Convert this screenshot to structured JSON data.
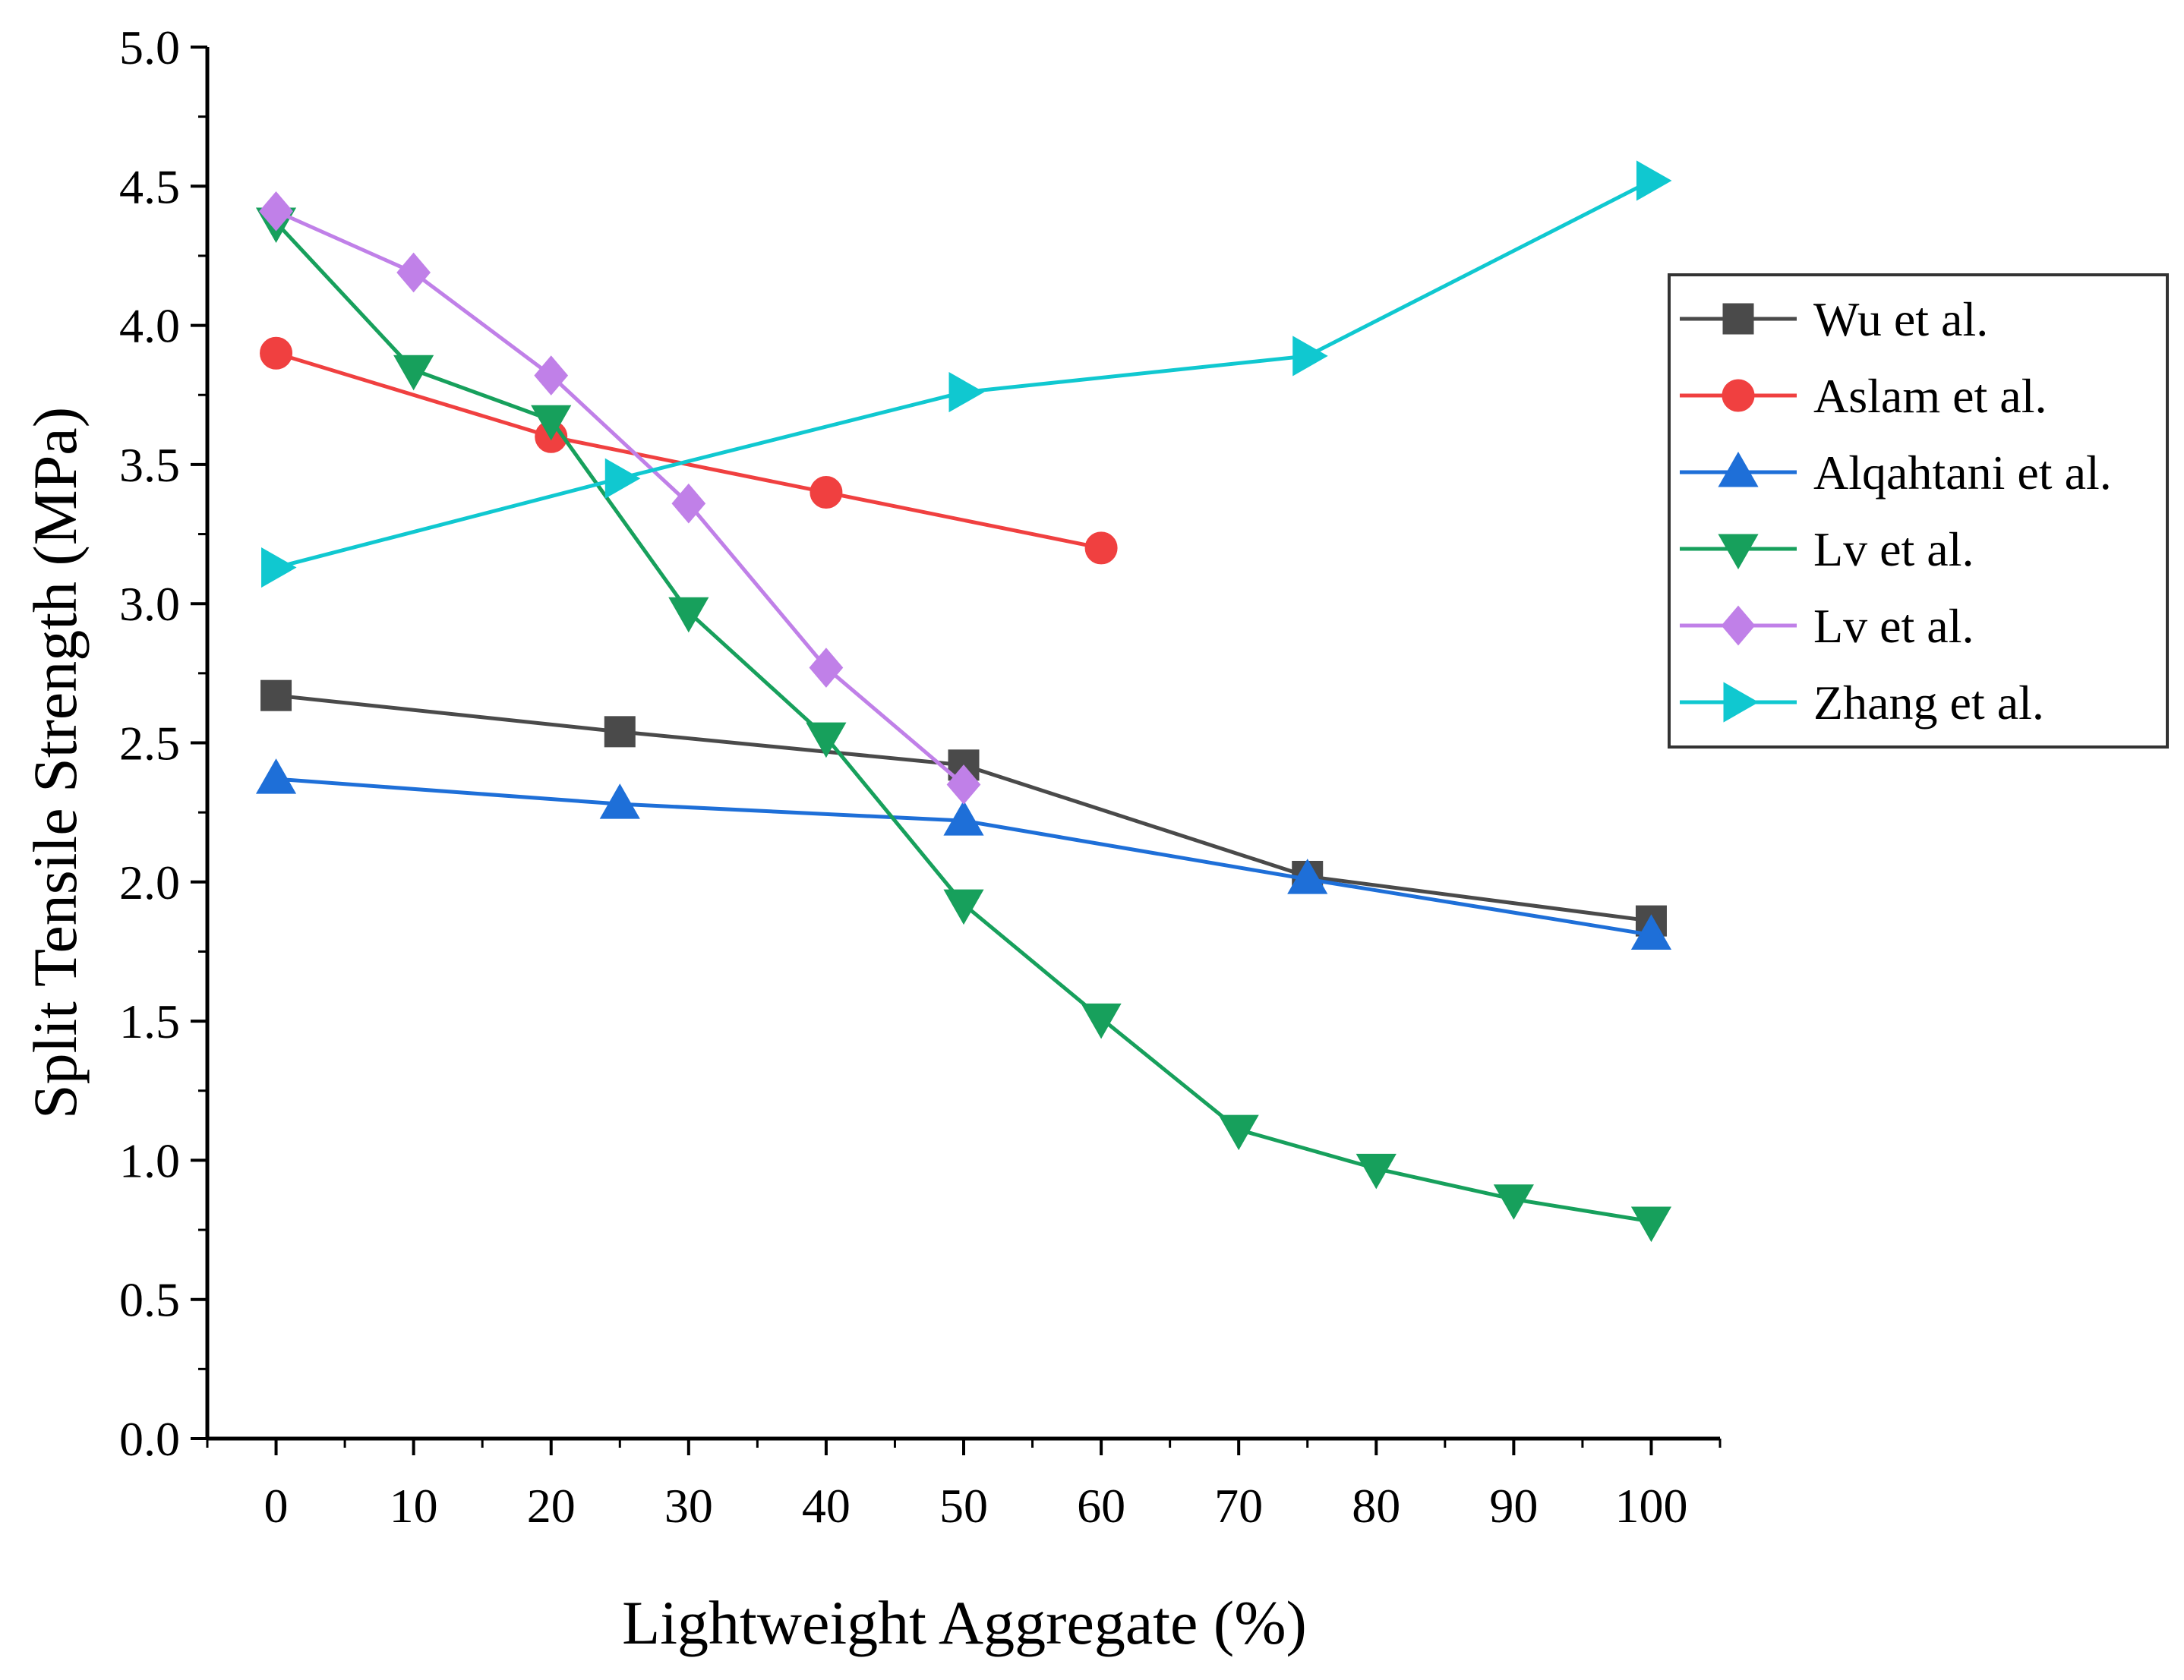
{
  "chart_data": {
    "type": "line",
    "title": "",
    "xlabel": "Lightweight Aggregate (%)",
    "ylabel": "Split Tensile Strength (MPa)",
    "xlim": [
      -5,
      105
    ],
    "ylim": [
      0,
      5
    ],
    "xticks": [
      "0",
      "10",
      "20",
      "30",
      "40",
      "50",
      "60",
      "70",
      "80",
      "90",
      "100"
    ],
    "yticks": [
      "0.0",
      "0.5",
      "1.0",
      "1.5",
      "2.0",
      "2.5",
      "3.0",
      "3.5",
      "4.0",
      "4.5",
      "5.0"
    ],
    "grid": false,
    "legend_position": "right",
    "series": [
      {
        "name": "Wu et al.",
        "color": "#4a4a4a",
        "marker": "square",
        "x": [
          0,
          25,
          50,
          75,
          100
        ],
        "y": [
          2.67,
          2.54,
          2.42,
          2.02,
          1.86
        ]
      },
      {
        "name": "Aslam et al.",
        "color": "#f04040",
        "marker": "circle",
        "x": [
          0,
          20,
          40,
          60
        ],
        "y": [
          3.9,
          3.6,
          3.4,
          3.2
        ]
      },
      {
        "name": "Alqahtani et al.",
        "color": "#1e6fd8",
        "marker": "triangle-up",
        "x": [
          0,
          25,
          50,
          75,
          100
        ],
        "y": [
          2.37,
          2.28,
          2.22,
          2.01,
          1.81
        ]
      },
      {
        "name": "Lv et al.",
        "color": "#17a05c",
        "marker": "triangle-down",
        "x": [
          0,
          10,
          20,
          30,
          40,
          50,
          60,
          70,
          80,
          90,
          100
        ],
        "y": [
          4.37,
          3.84,
          3.66,
          2.97,
          2.52,
          1.92,
          1.51,
          1.11,
          0.97,
          0.86,
          0.78
        ]
      },
      {
        "name": "Lv et al.",
        "color": "#c080e8",
        "marker": "diamond",
        "x": [
          0,
          10,
          20,
          30,
          40,
          50
        ],
        "y": [
          4.41,
          4.19,
          3.82,
          3.36,
          2.77,
          2.35
        ]
      },
      {
        "name": "Zhang et al.",
        "color": "#10c8d0",
        "marker": "triangle-right",
        "x": [
          0,
          25,
          50,
          75,
          100
        ],
        "y": [
          3.13,
          3.45,
          3.76,
          3.89,
          4.52
        ]
      }
    ]
  }
}
